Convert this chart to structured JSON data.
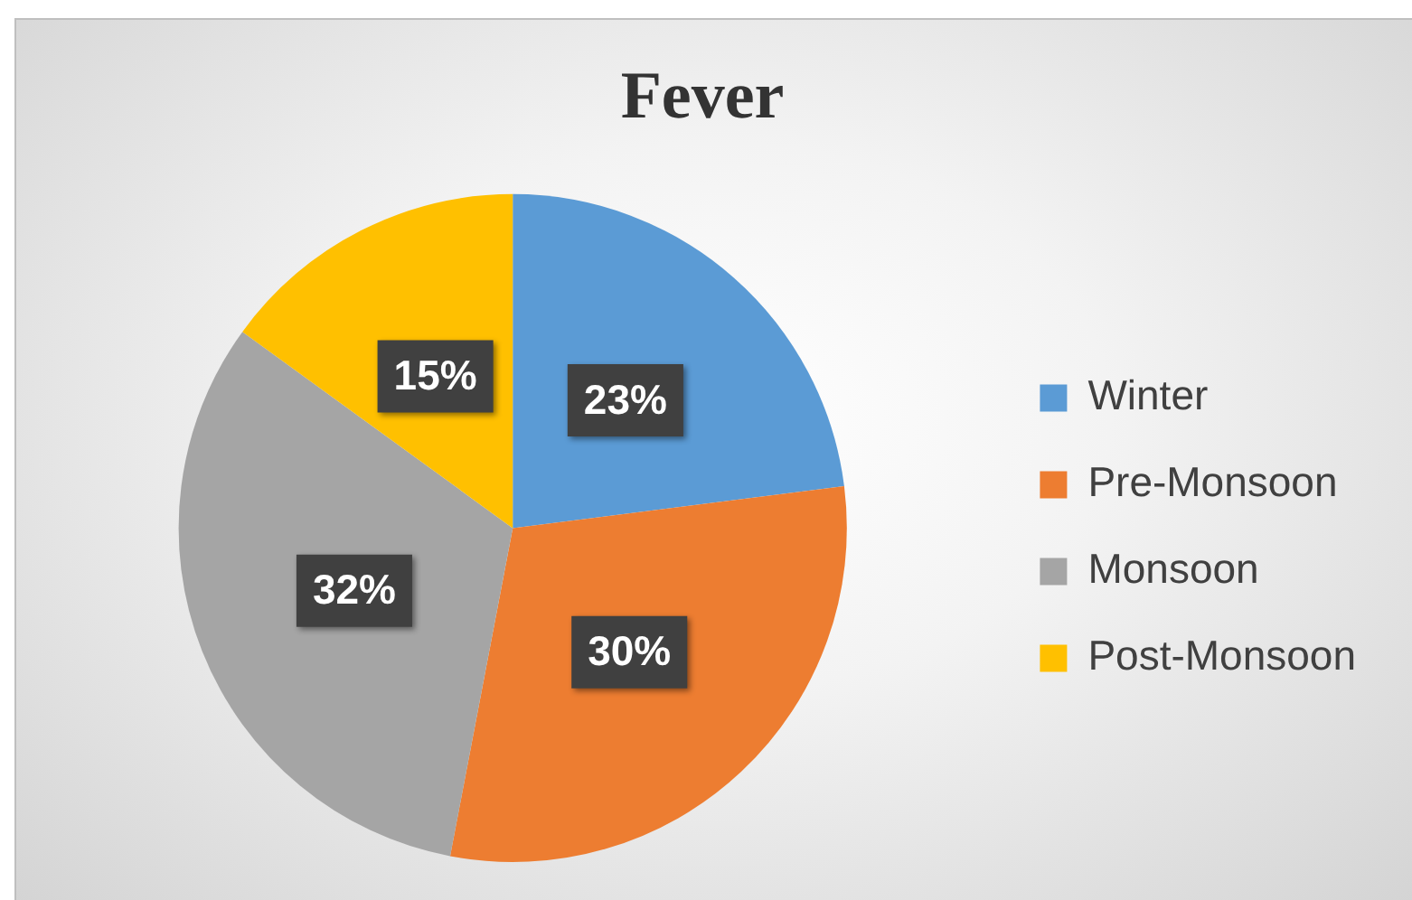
{
  "chart_data": {
    "type": "pie",
    "title": "Fever",
    "categories": [
      "Winter",
      "Pre-Monsoon",
      "Monsoon",
      "Post-Monsoon"
    ],
    "values": [
      23,
      30,
      32,
      15
    ],
    "colors": [
      "#5b9bd5",
      "#ed7d31",
      "#a5a5a5",
      "#ffc000"
    ],
    "value_labels": [
      "23%",
      "30%",
      "32%",
      "15%"
    ],
    "legend": "right"
  }
}
